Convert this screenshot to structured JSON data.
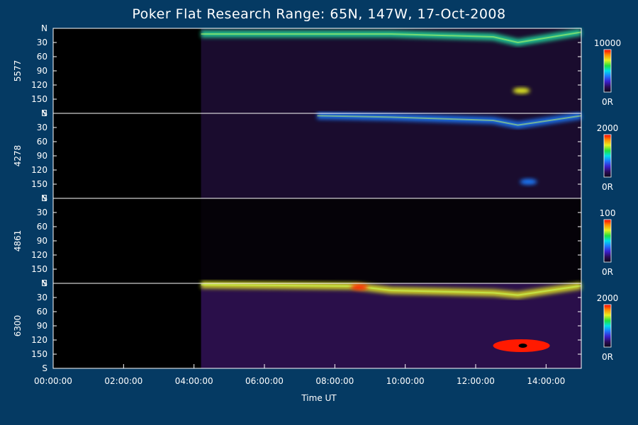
{
  "chart_data": {
    "type": "heatmap",
    "title": "Poker Flat Research Range: 65N, 147W, 17-Oct-2008",
    "xlabel": "Time UT",
    "x_ticks": [
      "00:00:00",
      "02:00:00",
      "04:00:00",
      "06:00:00",
      "08:00:00",
      "10:00:00",
      "12:00:00",
      "14:00:00"
    ],
    "x_range_hours": [
      0,
      15
    ],
    "data_start_hours": 4.2,
    "y_ticks": [
      "N",
      "30",
      "60",
      "90",
      "120",
      "150",
      "S"
    ],
    "y_tick_values": [
      0,
      30,
      60,
      90,
      120,
      150,
      180
    ],
    "y_range": [
      0,
      180
    ],
    "panels": [
      {
        "ylabel": "5577",
        "colorbar_max": "10000",
        "colorbar_min": "0R",
        "features": [
          {
            "kind": "arc_band",
            "t": [
              4.2,
              9.6,
              12.5,
              13.2,
              15.0
            ],
            "lat": [
              12,
              12,
              18,
              30,
              8
            ],
            "intensity": 0.65
          },
          {
            "kind": "spot",
            "t": 13.3,
            "lat": 132,
            "intensity": 0.9
          }
        ]
      },
      {
        "ylabel": "4278",
        "colorbar_max": "2000",
        "colorbar_min": "0R",
        "features": [
          {
            "kind": "arc_band",
            "t": [
              7.5,
              9.6,
              12.5,
              13.2,
              15.0
            ],
            "lat": [
              5,
              8,
              15,
              25,
              5
            ],
            "intensity": 0.6
          },
          {
            "kind": "spot",
            "t": 13.5,
            "lat": 145,
            "intensity": 0.5
          }
        ]
      },
      {
        "ylabel": "4861",
        "colorbar_max": "100",
        "colorbar_min": "0R",
        "features": []
      },
      {
        "ylabel": "6300",
        "colorbar_max": "2000",
        "colorbar_min": "0R",
        "features": [
          {
            "kind": "arc_band",
            "t": [
              4.2,
              8.6,
              9.6,
              12.5,
              13.2,
              15.0
            ],
            "lat": [
              3,
              6,
              15,
              20,
              25,
              5
            ],
            "intensity": 0.85
          },
          {
            "kind": "spot",
            "t": 8.7,
            "lat": 8,
            "intensity": 1.0
          },
          {
            "kind": "blob",
            "t": 13.3,
            "lat": 132,
            "intensity": 1.0
          }
        ]
      }
    ]
  }
}
